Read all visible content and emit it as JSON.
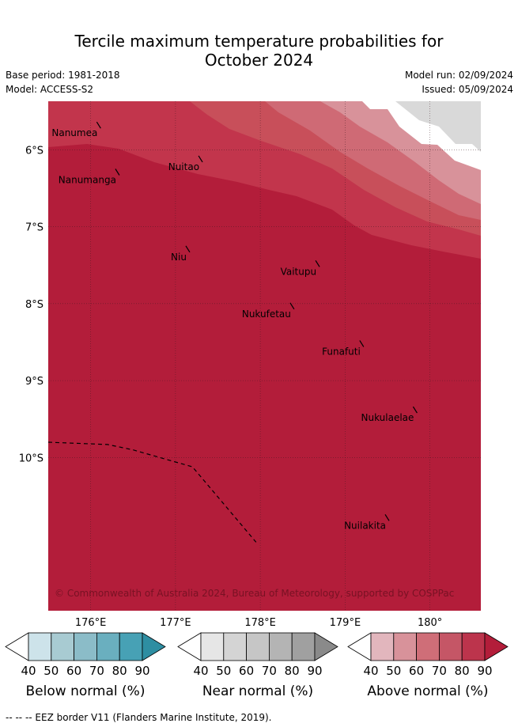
{
  "title": {
    "line1": "Tercile maximum temperature probabilities for",
    "line2": "October 2024"
  },
  "meta": {
    "base_period": "Base period: 1981-2018",
    "model": "Model: ACCESS-S2",
    "model_run": "Model run: 02/09/2024",
    "issued": "Issued: 05/09/2024"
  },
  "map": {
    "lon_range": [
      175.5,
      180.6
    ],
    "lat_range": [
      -11.99,
      -5.37
    ],
    "lat_ticks": [
      {
        "value": -6,
        "label": "6°S"
      },
      {
        "value": -7,
        "label": "7°S"
      },
      {
        "value": -8,
        "label": "8°S"
      },
      {
        "value": -9,
        "label": "9°S"
      },
      {
        "value": -10,
        "label": "10°S"
      }
    ],
    "lon_ticks": [
      {
        "value": 176,
        "label": "176°E"
      },
      {
        "value": 177,
        "label": "177°E"
      },
      {
        "value": 178,
        "label": "178°E"
      },
      {
        "value": 179,
        "label": "179°E"
      },
      {
        "value": 180,
        "label": "180°"
      }
    ],
    "islands": [
      {
        "name": "Nanumea",
        "lon": 176.1,
        "lat": -5.68
      },
      {
        "name": "Nuitao",
        "lon": 177.3,
        "lat": -6.12
      },
      {
        "name": "Nanumanga",
        "lon": 176.32,
        "lat": -6.29
      },
      {
        "name": "Niu",
        "lon": 177.15,
        "lat": -7.29
      },
      {
        "name": "Vaitupu",
        "lon": 178.68,
        "lat": -7.48
      },
      {
        "name": "Nukufetau",
        "lon": 178.38,
        "lat": -8.03
      },
      {
        "name": "Funafuti",
        "lon": 179.2,
        "lat": -8.52
      },
      {
        "name": "Nukulaelae",
        "lon": 179.83,
        "lat": -9.38
      },
      {
        "name": "Nuilakita",
        "lon": 179.5,
        "lat": -10.78
      }
    ],
    "eez_border": [
      [
        175.5,
        -9.8
      ],
      [
        176.2,
        -9.83
      ],
      [
        176.5,
        -9.9
      ],
      [
        177.2,
        -10.12
      ],
      [
        177.95,
        -11.1
      ]
    ],
    "copyright": "© Commonwealth of Australia 2024, Bureau of Meteorology, supported by COSPPac",
    "colors": {
      "above_90": "#b31d3a",
      "above_80": "#c2354c",
      "above_70": "#c84f5a",
      "above_60": "#cf6a75",
      "above_50": "#d8929a",
      "no_data": "#d9d9d9"
    }
  },
  "colorbars": [
    {
      "title": "Below normal (%)",
      "ticks": [
        "40",
        "50",
        "60",
        "70",
        "80",
        "90"
      ],
      "colors": [
        "#ffffff",
        "#cde3ea",
        "#a8cbd2",
        "#8bbcc8",
        "#6aafbf",
        "#47a1b5",
        "#2e8ea2"
      ]
    },
    {
      "title": "Near normal (%)",
      "ticks": [
        "40",
        "50",
        "60",
        "70",
        "80",
        "90"
      ],
      "colors": [
        "#ffffff",
        "#e6e6e6",
        "#d4d4d4",
        "#c6c6c6",
        "#b4b4b4",
        "#a0a0a0",
        "#8a8a8a"
      ]
    },
    {
      "title": "Above normal (%)",
      "ticks": [
        "40",
        "50",
        "60",
        "70",
        "80",
        "90"
      ],
      "colors": [
        "#ffffff",
        "#e2b6bd",
        "#d8929a",
        "#cf6e78",
        "#c55666",
        "#bc344c",
        "#b31d3a"
      ]
    }
  ],
  "footnote": "-- -- -- EEZ border V11 (Flanders Marine Institute, 2019)."
}
